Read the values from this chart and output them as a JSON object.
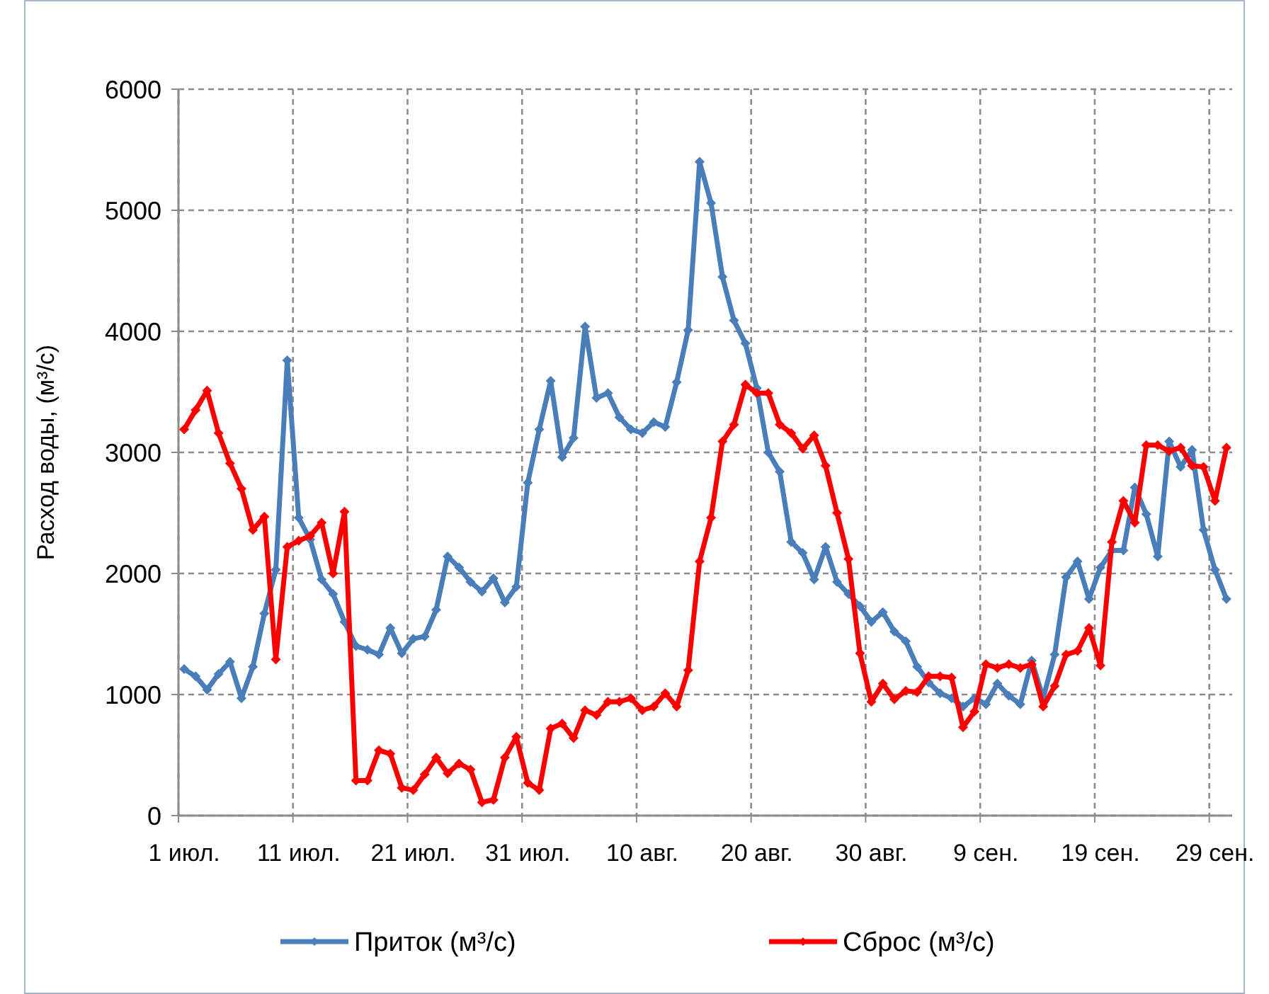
{
  "chart_data": {
    "type": "line",
    "ylabel": "Расход воды,  (м³/с)",
    "categories": [
      "1 июл.",
      null,
      null,
      null,
      null,
      null,
      null,
      null,
      null,
      null,
      "11 июл.",
      null,
      null,
      null,
      null,
      null,
      null,
      null,
      null,
      null,
      "21 июл.",
      null,
      null,
      null,
      null,
      null,
      null,
      null,
      null,
      null,
      "31 июл.",
      null,
      null,
      null,
      null,
      null,
      null,
      null,
      null,
      null,
      "10 авг.",
      null,
      null,
      null,
      null,
      null,
      null,
      null,
      null,
      null,
      "20 авг.",
      null,
      null,
      null,
      null,
      null,
      null,
      null,
      null,
      null,
      "30 авг.",
      null,
      null,
      null,
      null,
      null,
      null,
      null,
      null,
      null,
      "9 сен.",
      null,
      null,
      null,
      null,
      null,
      null,
      null,
      null,
      null,
      "19 сен.",
      null,
      null,
      null,
      null,
      null,
      null,
      null,
      null,
      null,
      "29 сен.",
      null
    ],
    "series": [
      {
        "name": "Приток  (м³/с)",
        "color": "#4a7ebb",
        "values": [
          1210,
          1150,
          1040,
          1170,
          1270,
          970,
          1230,
          1670,
          2030,
          3760,
          2460,
          2280,
          1950,
          1830,
          1600,
          1400,
          1370,
          1330,
          1550,
          1340,
          1460,
          1480,
          1700,
          2140,
          2050,
          1930,
          1850,
          1960,
          1760,
          1890,
          2750,
          3190,
          3590,
          2960,
          3120,
          4040,
          3450,
          3490,
          3290,
          3190,
          3160,
          3250,
          3210,
          3580,
          4010,
          5400,
          5060,
          4450,
          4090,
          3900,
          3530,
          3000,
          2840,
          2260,
          2170,
          1950,
          2220,
          1930,
          1830,
          1730,
          1600,
          1680,
          1520,
          1440,
          1230,
          1100,
          1010,
          970,
          900,
          970,
          920,
          1090,
          990,
          920,
          1280,
          970,
          1330,
          1970,
          2100,
          1790,
          2050,
          2190,
          2190,
          2710,
          2490,
          2140,
          3090,
          2880,
          3020,
          2360,
          2030,
          1790
        ]
      },
      {
        "name": "Сброс  (м³/с)",
        "color": "#ff0000",
        "values": [
          3190,
          3350,
          3510,
          3160,
          2910,
          2700,
          2360,
          2470,
          1290,
          2220,
          2270,
          2310,
          2420,
          2000,
          2510,
          290,
          290,
          540,
          510,
          230,
          210,
          340,
          480,
          350,
          430,
          380,
          110,
          130,
          480,
          650,
          270,
          210,
          720,
          760,
          640,
          870,
          830,
          940,
          940,
          970,
          870,
          900,
          1010,
          900,
          1200,
          2100,
          2460,
          3090,
          3230,
          3560,
          3490,
          3490,
          3230,
          3160,
          3030,
          3140,
          2890,
          2500,
          2120,
          1340,
          940,
          1090,
          960,
          1030,
          1020,
          1150,
          1150,
          1140,
          730,
          860,
          1250,
          1220,
          1250,
          1220,
          1250,
          900,
          1070,
          1330,
          1360,
          1550,
          1240,
          2260,
          2600,
          2420,
          3060,
          3060,
          3010,
          3040,
          2890,
          2880,
          2600,
          3040
        ]
      }
    ],
    "ylim": [
      0,
      6000
    ],
    "yticks": [
      0,
      1000,
      2000,
      3000,
      4000,
      5000,
      6000
    ],
    "grid": true,
    "legend": "bottom",
    "marker": "diamond",
    "line_style": "solid"
  }
}
